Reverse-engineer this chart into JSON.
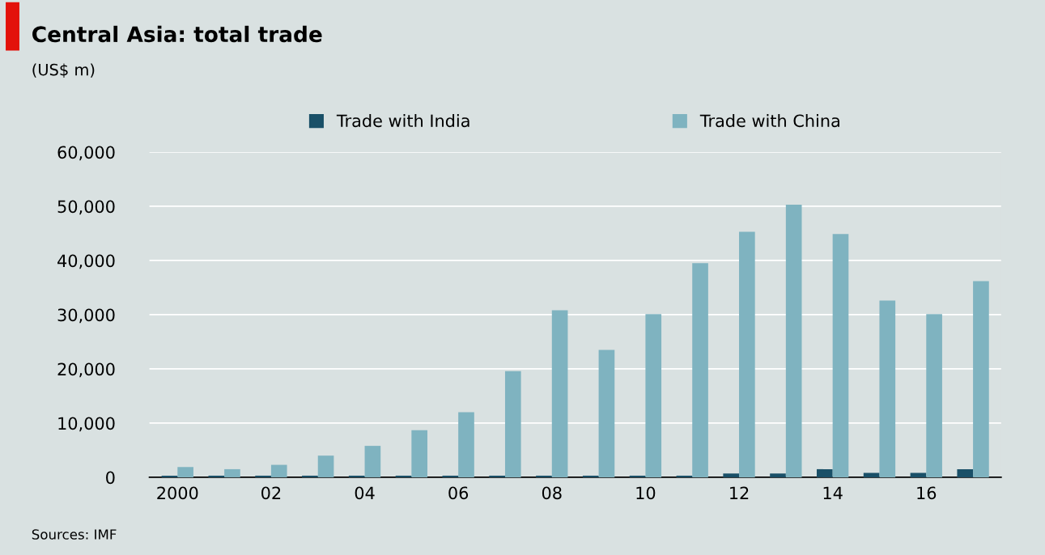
{
  "chart_data": {
    "type": "bar",
    "title": "Central Asia: total trade",
    "subtitle": "(US$ m)",
    "categories": [
      "2000",
      null,
      "02",
      null,
      "04",
      null,
      "06",
      null,
      "08",
      null,
      "10",
      null,
      "12",
      null,
      "14",
      null,
      "16",
      null
    ],
    "series": [
      {
        "name": "Trade with India",
        "color": "#1a5068",
        "values": [
          300,
          300,
          300,
          300,
          300,
          300,
          300,
          300,
          300,
          300,
          300,
          300,
          700,
          700,
          1500,
          800,
          800,
          1500
        ]
      },
      {
        "name": "Trade with China",
        "color": "#7fb3c0",
        "values": [
          1900,
          1500,
          2300,
          4000,
          5800,
          8700,
          12000,
          19600,
          30800,
          23500,
          30100,
          39500,
          45300,
          50300,
          44900,
          32600,
          30100,
          36200
        ]
      }
    ],
    "ylim": [
      0,
      60000
    ],
    "yticks": [
      {
        "value": 0,
        "label": "0"
      },
      {
        "value": 10000,
        "label": "10,000"
      },
      {
        "value": 20000,
        "label": "20,000"
      },
      {
        "value": 30000,
        "label": "30,000"
      },
      {
        "value": 40000,
        "label": "40,000"
      },
      {
        "value": 50000,
        "label": "50,000"
      },
      {
        "value": 60000,
        "label": "60,000"
      }
    ],
    "grid": "y",
    "legend": "top",
    "annotations": [
      "Sources: IMF"
    ]
  }
}
